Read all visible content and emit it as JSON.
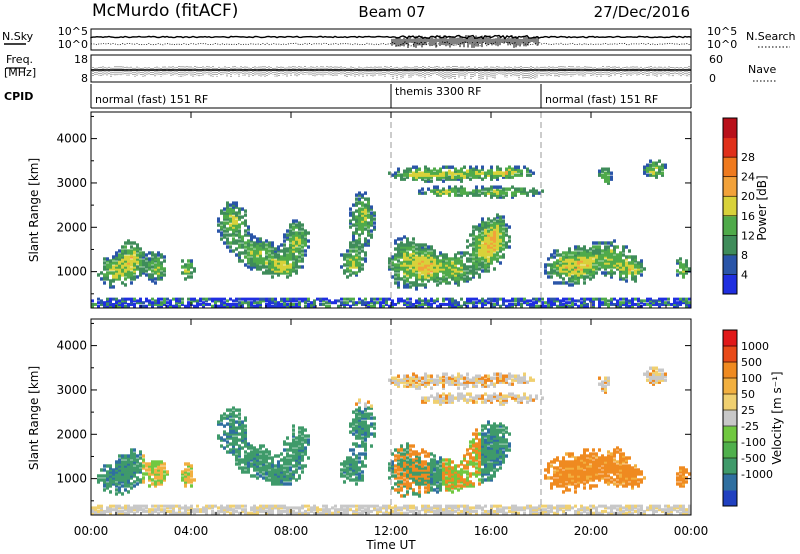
{
  "header": {
    "station": "McMurdo (fitACF)",
    "beam": "Beam 07",
    "date": "27/Dec/2016"
  },
  "noise_panel": {
    "left_label": "N.Sky",
    "right_label": "N.Search",
    "left_ticks": [
      "10^5",
      "10^0"
    ],
    "right_ticks": [
      "10^5",
      "10^0"
    ]
  },
  "freq_panel": {
    "left_label_top": "Freq.",
    "left_label_bottom": "[MHz]",
    "left_ticks": [
      "18",
      "8"
    ],
    "right_label": "Nave",
    "right_ticks": [
      "60",
      "0"
    ]
  },
  "cpid_panel": {
    "label": "CPID",
    "modes": [
      {
        "label": "normal (fast) 151 RF",
        "start": 0,
        "end": 12
      },
      {
        "label": "themis 3300 RF",
        "start": 12,
        "end": 18
      },
      {
        "label": "normal (fast) 151 RF",
        "start": 18,
        "end": 24
      }
    ]
  },
  "chart_data": [
    {
      "type": "heatmap",
      "name": "power",
      "ylabel": "Slant Range [km]",
      "ylim": [
        180,
        4600
      ],
      "yticks": [
        "1000",
        "2000",
        "3000",
        "4000"
      ],
      "colorbar_label": "Power [dB]",
      "colorbar_ticks": [
        "4",
        "8",
        "12",
        "16",
        "20",
        "24",
        "28"
      ],
      "colorbar_colors": [
        "#1f2fe0",
        "#2a55a8",
        "#3f8c5a",
        "#4faa4a",
        "#d8d23a",
        "#f2a23a",
        "#ef7a1e",
        "#e0301a",
        "#b8101a"
      ]
    },
    {
      "type": "heatmap",
      "name": "velocity",
      "ylabel": "Slant Range [km]",
      "ylim": [
        180,
        4600
      ],
      "yticks": [
        "1000",
        "2000",
        "3000",
        "4000"
      ],
      "colorbar_label": "Velocity [m s⁻¹]",
      "colorbar_ticks": [
        "1000",
        "500",
        "100",
        "50",
        "25",
        "-25",
        "-100",
        "-500",
        "-1000"
      ],
      "colorbar_colors": [
        "#2040c0",
        "#2f6fa0",
        "#3f9a6a",
        "#4fb04c",
        "#70c840",
        "#c8c8c8",
        "#f0d070",
        "#f2b040",
        "#ef8a20",
        "#e84a18",
        "#e01818"
      ]
    }
  ],
  "x_axis": {
    "label": "Time UT",
    "ticks": [
      "00:00",
      "04:00",
      "08:00",
      "12:00",
      "16:00",
      "20:00",
      "00:00"
    ]
  }
}
